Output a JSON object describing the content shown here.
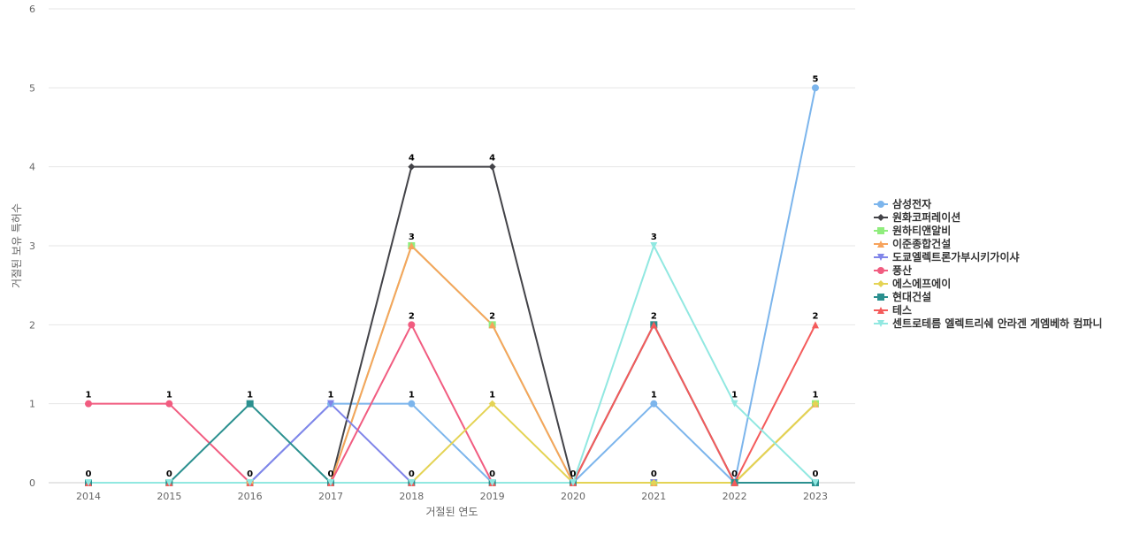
{
  "chart_data": {
    "type": "line",
    "title": "",
    "xlabel": "거절된 연도",
    "ylabel": "거절된 보유 특허수",
    "x": [
      "2014",
      "2015",
      "2016",
      "2017",
      "2018",
      "2019",
      "2020",
      "2021",
      "2022",
      "2023"
    ],
    "ylim": [
      0,
      6
    ],
    "yticks": [
      0,
      1,
      2,
      3,
      4,
      5,
      6
    ],
    "grid": true,
    "legend_position": "right",
    "series": [
      {
        "name": "삼성전자",
        "color": "#7cb5ec",
        "marker": "circle",
        "values": [
          0,
          0,
          0,
          1,
          1,
          0,
          0,
          1,
          0,
          5
        ]
      },
      {
        "name": "원화코퍼레이션",
        "color": "#434348",
        "marker": "diamond",
        "values": [
          0,
          0,
          0,
          0,
          4,
          4,
          0,
          0,
          0,
          0
        ]
      },
      {
        "name": "원하티앤알비",
        "color": "#90ed7d",
        "marker": "square",
        "values": [
          0,
          0,
          0,
          0,
          3,
          2,
          0,
          0,
          0,
          1
        ]
      },
      {
        "name": "이준종합건설",
        "color": "#f7a35c",
        "marker": "triangle",
        "values": [
          0,
          0,
          0,
          0,
          3,
          2,
          0,
          0,
          0,
          1
        ]
      },
      {
        "name": "도쿄엘렉트론가부시키가이샤",
        "color": "#8085e9",
        "marker": "triangle-down",
        "values": [
          0,
          0,
          0,
          1,
          0,
          0,
          0,
          0,
          0,
          0
        ]
      },
      {
        "name": "풍산",
        "color": "#f15c80",
        "marker": "circle",
        "values": [
          1,
          1,
          0,
          0,
          2,
          0,
          0,
          2,
          0,
          0
        ]
      },
      {
        "name": "에스에프에이",
        "color": "#e4d354",
        "marker": "diamond",
        "values": [
          0,
          0,
          0,
          0,
          0,
          1,
          0,
          0,
          0,
          1
        ]
      },
      {
        "name": "현대건설",
        "color": "#2b908f",
        "marker": "square",
        "values": [
          0,
          0,
          1,
          0,
          0,
          0,
          0,
          2,
          0,
          0
        ]
      },
      {
        "name": "테스",
        "color": "#f45b5b",
        "marker": "triangle",
        "values": [
          0,
          0,
          0,
          0,
          0,
          0,
          0,
          2,
          0,
          2
        ]
      },
      {
        "name": "센트로테름 엘렉트리쉐 안라겐 게엠베하 컴파니",
        "color": "#91e8e1",
        "marker": "triangle-down",
        "values": [
          0,
          0,
          0,
          0,
          0,
          0,
          0,
          3,
          1,
          0
        ]
      }
    ],
    "data_labels": [
      {
        "x": "2014",
        "value": 1,
        "text": "1"
      },
      {
        "x": "2014",
        "value": 0,
        "text": "0"
      },
      {
        "x": "2015",
        "value": 1,
        "text": "1"
      },
      {
        "x": "2015",
        "value": 0,
        "text": "0"
      },
      {
        "x": "2016",
        "value": 1,
        "text": "1"
      },
      {
        "x": "2016",
        "value": 0,
        "text": "0"
      },
      {
        "x": "2017",
        "value": 1,
        "text": "1"
      },
      {
        "x": "2017",
        "value": 0,
        "text": "0"
      },
      {
        "x": "2018",
        "value": 4,
        "text": "4"
      },
      {
        "x": "2018",
        "value": 3,
        "text": "3"
      },
      {
        "x": "2018",
        "value": 2,
        "text": "2"
      },
      {
        "x": "2018",
        "value": 1,
        "text": "1"
      },
      {
        "x": "2018",
        "value": 0,
        "text": "0"
      },
      {
        "x": "2019",
        "value": 4,
        "text": "4"
      },
      {
        "x": "2019",
        "value": 2,
        "text": "2"
      },
      {
        "x": "2019",
        "value": 1,
        "text": "1"
      },
      {
        "x": "2019",
        "value": 0,
        "text": "0"
      },
      {
        "x": "2020",
        "value": 0,
        "text": "0"
      },
      {
        "x": "2021",
        "value": 3,
        "text": "3"
      },
      {
        "x": "2021",
        "value": 2,
        "text": "2"
      },
      {
        "x": "2021",
        "value": 1,
        "text": "1"
      },
      {
        "x": "2021",
        "value": 0,
        "text": "0"
      },
      {
        "x": "2022",
        "value": 1,
        "text": "1"
      },
      {
        "x": "2022",
        "value": 0,
        "text": "0"
      },
      {
        "x": "2023",
        "value": 5,
        "text": "5"
      },
      {
        "x": "2023",
        "value": 2,
        "text": "2"
      },
      {
        "x": "2023",
        "value": 1,
        "text": "1"
      },
      {
        "x": "2023",
        "value": 0,
        "text": "0"
      }
    ]
  }
}
